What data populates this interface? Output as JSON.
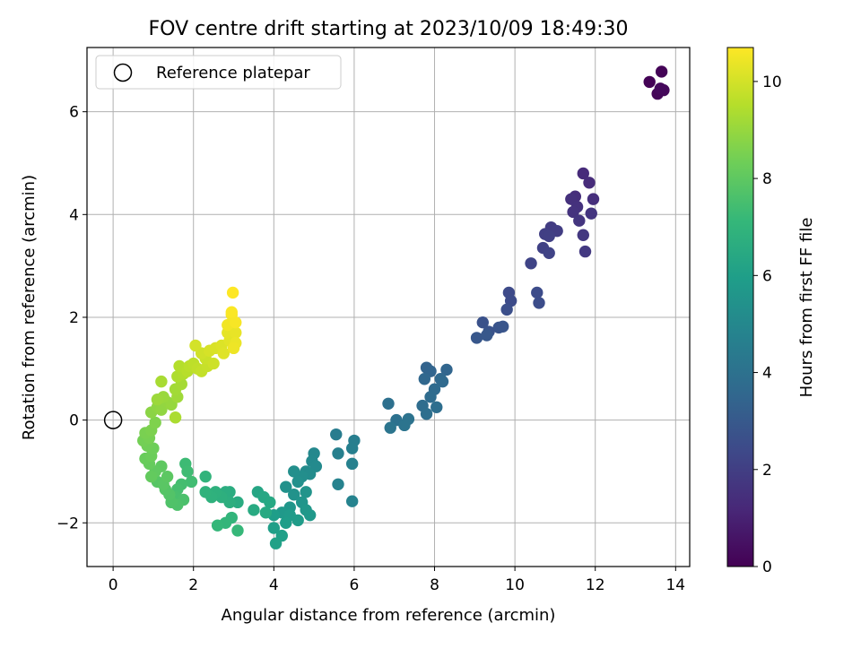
{
  "chart_data": {
    "type": "scatter",
    "title": "FOV centre drift starting at 2023/10/09 18:49:30",
    "xlabel": "Angular distance from reference (arcmin)",
    "ylabel": "Rotation from reference (arcmin)",
    "xlim": [
      -0.65,
      14.35
    ],
    "ylim": [
      -2.85,
      7.25
    ],
    "xticks": [
      0,
      2,
      4,
      6,
      8,
      10,
      12,
      14
    ],
    "yticks": [
      -2,
      0,
      2,
      4,
      6
    ],
    "grid": true,
    "legend": {
      "placement": "top-left",
      "entries": [
        {
          "label": "Reference platepar",
          "marker": "open-circle"
        }
      ]
    },
    "reference_point": {
      "x": 0,
      "y": 0
    },
    "colorbar": {
      "label": "Hours from first FF file",
      "range": [
        0,
        10.7
      ],
      "ticks": [
        0,
        2,
        4,
        6,
        8,
        10
      ],
      "colormap": "viridis",
      "colors": [
        "#440154",
        "#482878",
        "#3e4989",
        "#31688e",
        "#26828e",
        "#1f9e89",
        "#35b779",
        "#6ece58",
        "#b5de2b",
        "#fde725"
      ]
    },
    "points": [
      [
        13.35,
        6.58,
        0.05
      ],
      [
        13.65,
        6.78,
        0.1
      ],
      [
        13.55,
        6.35,
        0.15
      ],
      [
        13.7,
        6.42,
        0.2
      ],
      [
        13.62,
        6.45,
        0.25
      ],
      [
        11.7,
        4.8,
        1.3
      ],
      [
        11.85,
        4.62,
        1.35
      ],
      [
        11.5,
        4.35,
        1.4
      ],
      [
        11.95,
        4.3,
        1.45
      ],
      [
        11.4,
        4.3,
        1.5
      ],
      [
        11.55,
        4.15,
        1.55
      ],
      [
        11.45,
        4.05,
        1.6
      ],
      [
        11.9,
        4.02,
        1.65
      ],
      [
        11.6,
        3.88,
        1.7
      ],
      [
        11.7,
        3.6,
        1.75
      ],
      [
        11.75,
        3.28,
        1.8
      ],
      [
        10.9,
        3.75,
        1.9
      ],
      [
        11.05,
        3.68,
        1.95
      ],
      [
        10.75,
        3.62,
        2.0
      ],
      [
        10.85,
        3.58,
        2.05
      ],
      [
        10.7,
        3.35,
        2.1
      ],
      [
        10.85,
        3.25,
        2.15
      ],
      [
        10.4,
        3.05,
        2.2
      ],
      [
        9.85,
        2.48,
        2.4
      ],
      [
        9.9,
        2.32,
        2.45
      ],
      [
        10.55,
        2.48,
        2.5
      ],
      [
        10.6,
        2.28,
        2.55
      ],
      [
        9.8,
        2.15,
        2.6
      ],
      [
        9.2,
        1.9,
        2.7
      ],
      [
        9.35,
        1.72,
        2.75
      ],
      [
        9.6,
        1.8,
        2.8
      ],
      [
        9.7,
        1.82,
        2.85
      ],
      [
        9.05,
        1.6,
        2.9
      ],
      [
        9.3,
        1.65,
        2.95
      ],
      [
        7.8,
        1.02,
        3.4
      ],
      [
        7.9,
        0.95,
        3.45
      ],
      [
        8.3,
        0.98,
        3.5
      ],
      [
        7.75,
        0.8,
        3.55
      ],
      [
        8.15,
        0.8,
        3.6
      ],
      [
        8.2,
        0.75,
        3.65
      ],
      [
        8.0,
        0.6,
        3.7
      ],
      [
        7.9,
        0.45,
        3.75
      ],
      [
        7.7,
        0.28,
        3.8
      ],
      [
        8.05,
        0.25,
        3.85
      ],
      [
        7.8,
        0.12,
        3.9
      ],
      [
        6.85,
        0.32,
        3.95
      ],
      [
        7.05,
        0.0,
        4.0
      ],
      [
        7.35,
        0.02,
        4.05
      ],
      [
        7.25,
        -0.1,
        4.1
      ],
      [
        6.9,
        -0.15,
        4.15
      ],
      [
        5.55,
        -0.28,
        4.5
      ],
      [
        6.0,
        -0.4,
        4.55
      ],
      [
        5.95,
        -0.55,
        4.6
      ],
      [
        5.6,
        -0.65,
        4.65
      ],
      [
        5.95,
        -0.85,
        4.7
      ],
      [
        5.6,
        -1.25,
        4.75
      ],
      [
        5.95,
        -1.58,
        4.8
      ],
      [
        5.0,
        -0.65,
        5.0
      ],
      [
        4.95,
        -0.8,
        5.05
      ],
      [
        5.05,
        -0.9,
        5.1
      ],
      [
        4.8,
        -1.0,
        5.15
      ],
      [
        4.9,
        -1.05,
        5.2
      ],
      [
        4.7,
        -1.1,
        5.25
      ],
      [
        4.5,
        -1.0,
        5.3
      ],
      [
        4.6,
        -1.2,
        5.35
      ],
      [
        4.3,
        -1.3,
        5.4
      ],
      [
        4.5,
        -1.45,
        5.45
      ],
      [
        4.8,
        -1.4,
        5.5
      ],
      [
        4.7,
        -1.6,
        5.55
      ],
      [
        4.4,
        -1.7,
        5.6
      ],
      [
        4.8,
        -1.75,
        5.65
      ],
      [
        4.9,
        -1.85,
        5.7
      ],
      [
        4.2,
        -1.8,
        5.75
      ],
      [
        4.4,
        -1.85,
        5.8
      ],
      [
        4.6,
        -1.95,
        5.85
      ],
      [
        4.3,
        -2.0,
        5.9
      ],
      [
        4.0,
        -1.85,
        5.95
      ],
      [
        4.0,
        -2.1,
        6.0
      ],
      [
        4.2,
        -2.25,
        6.05
      ],
      [
        4.05,
        -2.4,
        6.1
      ],
      [
        3.6,
        -1.4,
        6.3
      ],
      [
        3.75,
        -1.5,
        6.35
      ],
      [
        3.9,
        -1.6,
        6.4
      ],
      [
        3.8,
        -1.8,
        6.45
      ],
      [
        3.5,
        -1.75,
        6.5
      ],
      [
        3.1,
        -1.6,
        6.55
      ],
      [
        2.9,
        -1.4,
        6.6
      ],
      [
        2.8,
        -1.4,
        6.65
      ],
      [
        2.9,
        -1.6,
        6.7
      ],
      [
        2.7,
        -1.5,
        6.75
      ],
      [
        2.55,
        -1.4,
        6.8
      ],
      [
        2.45,
        -1.5,
        6.85
      ],
      [
        2.3,
        -1.4,
        6.9
      ],
      [
        2.3,
        -1.1,
        6.95
      ],
      [
        2.95,
        -1.9,
        7.0
      ],
      [
        2.8,
        -2.0,
        7.05
      ],
      [
        2.6,
        -2.05,
        7.1
      ],
      [
        3.1,
        -2.15,
        7.15
      ],
      [
        1.8,
        -0.85,
        7.3
      ],
      [
        1.85,
        -1.0,
        7.35
      ],
      [
        1.95,
        -1.2,
        7.4
      ],
      [
        1.7,
        -1.25,
        7.45
      ],
      [
        1.6,
        -1.35,
        7.5
      ],
      [
        1.55,
        -1.5,
        7.55
      ],
      [
        1.75,
        -1.55,
        7.6
      ],
      [
        1.6,
        -1.65,
        7.65
      ],
      [
        1.45,
        -1.6,
        7.7
      ],
      [
        1.4,
        -1.45,
        7.75
      ],
      [
        1.3,
        -1.35,
        7.8
      ],
      [
        1.1,
        -1.2,
        7.85
      ],
      [
        1.25,
        -1.25,
        7.9
      ],
      [
        1.35,
        -1.1,
        7.95
      ],
      [
        1.2,
        -0.9,
        8.0
      ],
      [
        1.05,
        -1.0,
        8.05
      ],
      [
        0.95,
        -1.1,
        8.1
      ],
      [
        0.9,
        -0.85,
        8.15
      ],
      [
        0.8,
        -0.75,
        8.2
      ],
      [
        0.95,
        -0.7,
        8.25
      ],
      [
        1.0,
        -0.55,
        8.3
      ],
      [
        0.85,
        -0.5,
        8.35
      ],
      [
        0.75,
        -0.4,
        8.4
      ],
      [
        0.9,
        -0.35,
        8.45
      ],
      [
        0.8,
        -0.25,
        8.5
      ],
      [
        0.95,
        -0.2,
        8.55
      ],
      [
        1.05,
        -0.05,
        8.6
      ],
      [
        0.95,
        0.15,
        8.8
      ],
      [
        1.1,
        0.25,
        8.85
      ],
      [
        1.2,
        0.2,
        8.9
      ],
      [
        1.35,
        0.35,
        8.95
      ],
      [
        1.45,
        0.3,
        9.0
      ],
      [
        1.25,
        0.45,
        9.05
      ],
      [
        1.1,
        0.4,
        9.1
      ],
      [
        1.6,
        0.45,
        9.15
      ],
      [
        1.55,
        0.6,
        9.2
      ],
      [
        1.7,
        0.7,
        9.25
      ],
      [
        1.2,
        0.75,
        9.3
      ],
      [
        1.55,
        0.05,
        9.35
      ],
      [
        1.6,
        0.85,
        9.4
      ],
      [
        1.75,
        0.9,
        9.45
      ],
      [
        1.65,
        1.05,
        9.5
      ],
      [
        1.85,
        0.95,
        9.55
      ],
      [
        1.9,
        1.05,
        9.6
      ],
      [
        2.0,
        1.1,
        9.65
      ],
      [
        2.1,
        1.0,
        9.7
      ],
      [
        2.2,
        0.95,
        9.75
      ],
      [
        2.35,
        1.05,
        9.8
      ],
      [
        2.3,
        1.2,
        9.85
      ],
      [
        2.5,
        1.1,
        9.9
      ],
      [
        2.2,
        1.3,
        9.95
      ],
      [
        2.05,
        1.45,
        10.0
      ],
      [
        2.4,
        1.35,
        10.05
      ],
      [
        2.55,
        1.4,
        10.1
      ],
      [
        2.7,
        1.45,
        10.15
      ],
      [
        2.75,
        1.3,
        10.2
      ],
      [
        2.9,
        1.55,
        10.25
      ],
      [
        2.85,
        1.7,
        10.3
      ],
      [
        3.05,
        1.7,
        10.35
      ],
      [
        3.05,
        1.5,
        10.4
      ],
      [
        3.0,
        1.4,
        10.45
      ],
      [
        2.85,
        1.85,
        10.5
      ],
      [
        2.95,
        2.05,
        10.55
      ],
      [
        3.05,
        1.9,
        10.6
      ],
      [
        2.95,
        2.1,
        10.65
      ],
      [
        2.98,
        2.48,
        10.7
      ]
    ]
  }
}
